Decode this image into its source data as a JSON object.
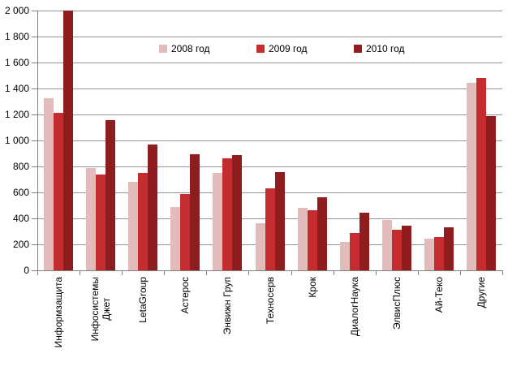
{
  "chart_data": {
    "type": "bar",
    "title": "",
    "xlabel": "",
    "ylabel": "",
    "categories": [
      "Информзащита",
      "Инфосистемы\nДжет",
      "LetaGroup",
      "Астерос",
      "Энвижн Груп",
      "Техносерв",
      "Крок",
      "ДиалогНаука",
      "ЭлвисПлюс",
      "Ай-Теко",
      "Другие"
    ],
    "series": [
      {
        "name": "2008 год",
        "color": "#E2BCBB",
        "values": [
          1325,
          785,
          680,
          485,
          750,
          360,
          480,
          220,
          385,
          245,
          1445
        ]
      },
      {
        "name": "2009 год",
        "color": "#C52C2F",
        "values": [
          1210,
          740,
          750,
          585,
          865,
          630,
          460,
          290,
          315,
          255,
          1480
        ]
      },
      {
        "name": "2010 год",
        "color": "#8F1D20",
        "values": [
          2000,
          1155,
          970,
          895,
          890,
          755,
          565,
          445,
          345,
          330,
          1190
        ]
      }
    ],
    "ylim": [
      0,
      2000
    ],
    "ytick_step": 200,
    "ytick_labels": [
      "0",
      "200",
      "400",
      "600",
      "800",
      "1 000",
      "1 200",
      "1 400",
      "1 600",
      "1 800",
      "2 000"
    ],
    "grid": "horizontal-only",
    "legend_position": "top-inside-horizontal"
  },
  "colors": {
    "background": "#FFFFFF",
    "gridline": "#949494",
    "axis": "#808080",
    "text": "#000000"
  }
}
